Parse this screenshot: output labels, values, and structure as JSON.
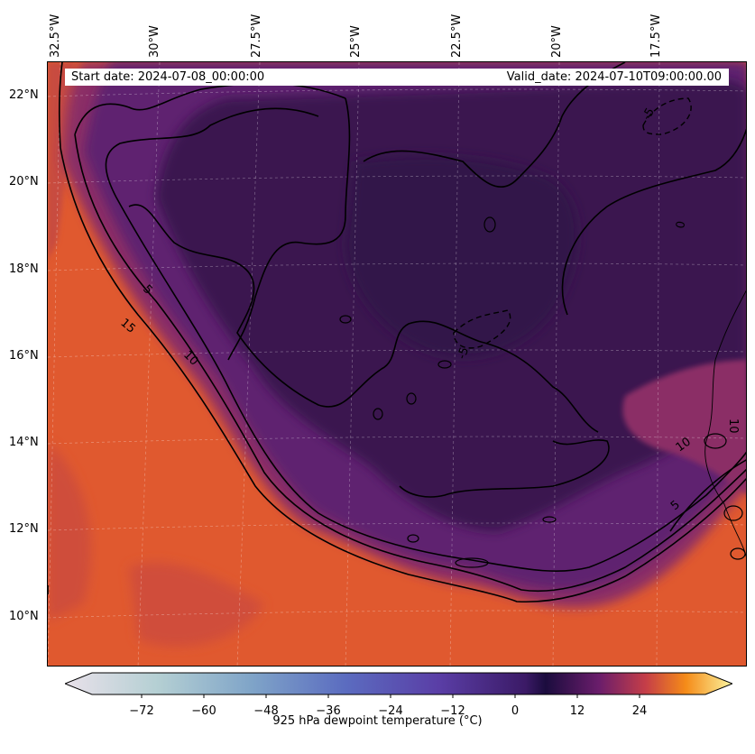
{
  "map": {
    "start_date": "Start date: 2024-07-08_00:00:00",
    "valid_date": "Valid_date: 2024-07-10T09:00:00.00",
    "longitude_labels": [
      "32.5°W",
      "30°W",
      "27.5°W",
      "25°W",
      "22.5°W",
      "20°W",
      "17.5°W"
    ],
    "latitude_labels": [
      "22°N",
      "20°N",
      "18°N",
      "16°N",
      "14°N",
      "12°N",
      "10°N"
    ],
    "contour_labels": [
      "15",
      "10",
      "5",
      "0",
      "-5",
      "5",
      "10",
      "10",
      "5",
      "0",
      "-5"
    ],
    "colors": {
      "ocean_warm": "#e0592f",
      "land_dry": "#3a1650",
      "mid": "#7a2a6a"
    }
  },
  "colorbar": {
    "ticks": [
      "−72",
      "−60",
      "−48",
      "−36",
      "−24",
      "−12",
      "0",
      "12",
      "24"
    ],
    "label": "925 hPa dewpoint temperature (°C)",
    "range": [
      -84,
      36
    ],
    "extend": "both"
  }
}
